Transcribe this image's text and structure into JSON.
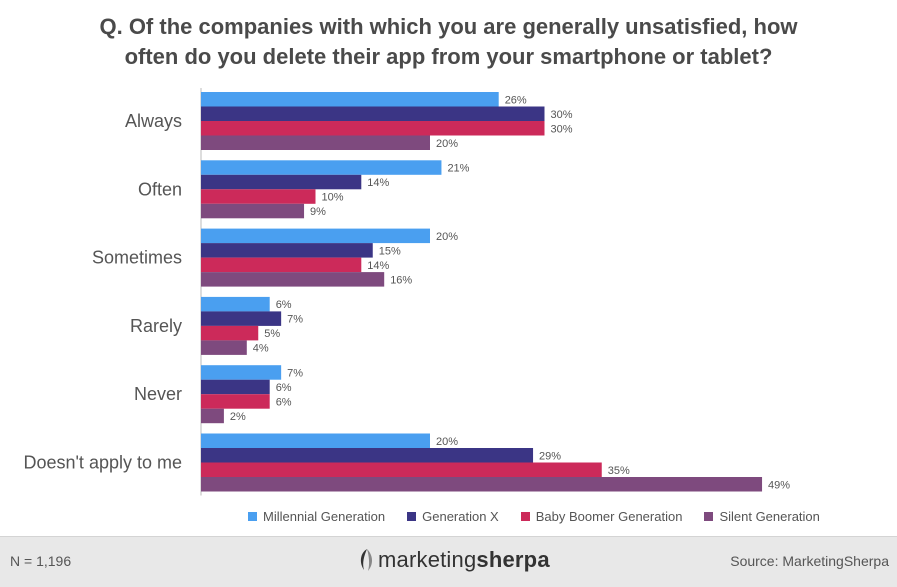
{
  "title_line1": "Q. Of the companies with which you are generally unsatisfied, how",
  "title_line2": "often do you delete their app from your smartphone or tablet?",
  "footer": {
    "sample_size": "N = 1,196",
    "logo_part1": "marketing",
    "logo_part2": "sherpa",
    "source": "Source: MarketingSherpa"
  },
  "chart_data": {
    "type": "bar",
    "orientation": "horizontal",
    "title": "Q. Of the companies with which you are generally unsatisfied, how often do you delete their app from your smartphone or tablet?",
    "categories": [
      "Always",
      "Often",
      "Sometimes",
      "Rarely",
      "Never",
      "Doesn't apply to me"
    ],
    "series": [
      {
        "name": "Millennial Generation",
        "color": "#4a9ff0",
        "values": [
          26,
          21,
          20,
          6,
          7,
          20
        ]
      },
      {
        "name": "Generation X",
        "color": "#3b3585",
        "values": [
          30,
          14,
          15,
          7,
          6,
          29
        ]
      },
      {
        "name": "Baby Boomer Generation",
        "color": "#cc2a5a",
        "values": [
          30,
          10,
          14,
          5,
          6,
          35
        ]
      },
      {
        "name": "Silent Generation",
        "color": "#7e4a7e",
        "values": [
          20,
          9,
          16,
          4,
          2,
          49
        ]
      }
    ],
    "value_suffix": "%",
    "xlim": [
      0,
      50
    ],
    "grid": false,
    "legend": "bottom"
  }
}
